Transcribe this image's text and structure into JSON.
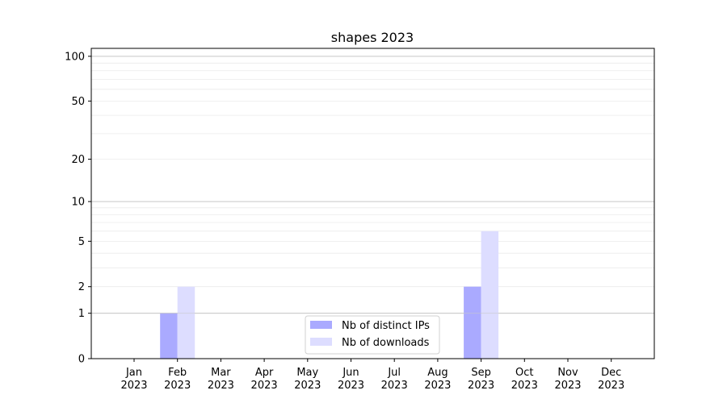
{
  "chart_data": {
    "type": "bar",
    "title": "shapes 2023",
    "xlabel": "",
    "ylabel": "",
    "yscale": "log10(1+y)",
    "ylim": [
      0,
      113
    ],
    "yticks": [
      0,
      1,
      2,
      5,
      10,
      20,
      50,
      100
    ],
    "grid": true,
    "legend_position": "lower center",
    "categories": [
      "Jan\n2023",
      "Feb\n2023",
      "Mar\n2023",
      "Apr\n2023",
      "May\n2023",
      "Jun\n2023",
      "Jul\n2023",
      "Aug\n2023",
      "Sep\n2023",
      "Oct\n2023",
      "Nov\n2023",
      "Dec\n2023"
    ],
    "series": [
      {
        "name": "Nb of distinct IPs",
        "color": "#aaaaff",
        "values": [
          0,
          1,
          0,
          0,
          0,
          0,
          0,
          0,
          2,
          0,
          0,
          0
        ]
      },
      {
        "name": "Nb of downloads",
        "color": "#ddddff",
        "values": [
          0,
          2,
          0,
          0,
          0,
          0,
          0,
          0,
          6,
          0,
          0,
          0
        ]
      }
    ]
  }
}
